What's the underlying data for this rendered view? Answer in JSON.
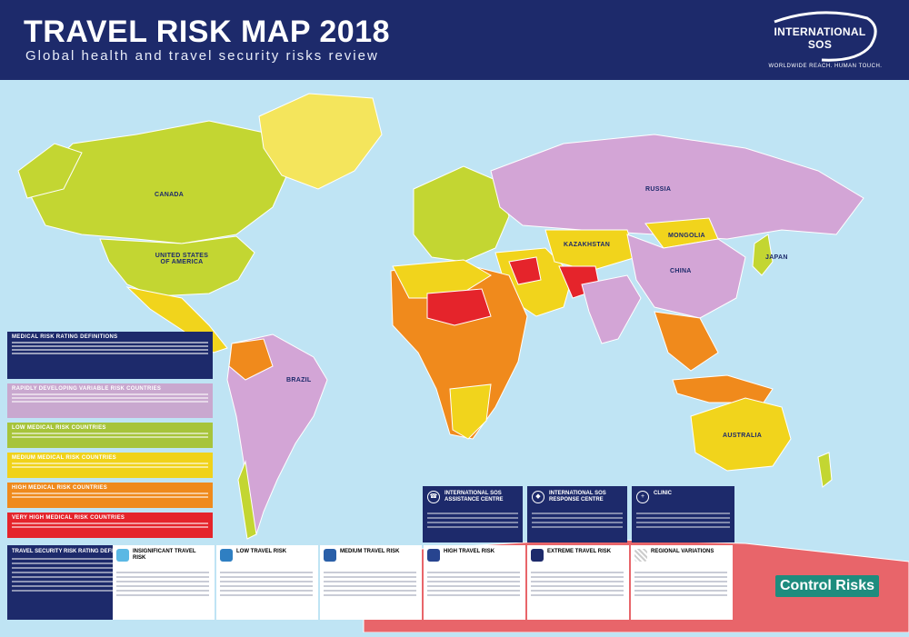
{
  "header": {
    "title": "TRAVEL RISK MAP 2018",
    "subtitle": "Global health and travel security risks review",
    "logo_name": "INTERNATIONAL SOS",
    "logo_tagline": "WORLDWIDE REACH. HUMAN TOUCH.",
    "background_color": "#1d2a6b"
  },
  "map": {
    "ocean_color": "#bfe4f4",
    "country_labels": {
      "canada": "CANADA",
      "usa": "UNITED STATES OF AMERICA",
      "russia": "RUSSIA",
      "china": "CHINA",
      "australia": "AUSTRALIA",
      "brazil": "BRAZIL",
      "mongolia": "MONGOLIA",
      "kazakhstan": "KAZAKHSTAN",
      "japan": "JAPAN"
    }
  },
  "medical_legend": {
    "definitions_title": "MEDICAL RISK RATING DEFINITIONS",
    "levels": [
      {
        "label": "RAPIDLY DEVELOPING VARIABLE RISK COUNTRIES",
        "color": "#c9a8cf"
      },
      {
        "label": "LOW MEDICAL RISK COUNTRIES",
        "color": "#a7c43a"
      },
      {
        "label": "MEDIUM MEDICAL RISK COUNTRIES",
        "color": "#f0d21a"
      },
      {
        "label": "HIGH MEDICAL RISK COUNTRIES",
        "color": "#ef8a1c"
      },
      {
        "label": "VERY HIGH MEDICAL RISK COUNTRIES",
        "color": "#e5242b"
      }
    ]
  },
  "security_legend": {
    "definitions_title": "TRAVEL SECURITY RISK RATING DEFINITIONS",
    "levels": [
      {
        "label": "INSIGNIFICANT TRAVEL RISK",
        "color": "#5bb8e4"
      },
      {
        "label": "LOW TRAVEL RISK",
        "color": "#2f7fc2"
      },
      {
        "label": "MEDIUM TRAVEL RISK",
        "color": "#2a5fa8"
      },
      {
        "label": "HIGH TRAVEL RISK",
        "color": "#27448f"
      },
      {
        "label": "EXTREME TRAVEL RISK",
        "color": "#1d2a6b"
      },
      {
        "label": "REGIONAL VARIATIONS",
        "color": "#cccccc"
      }
    ]
  },
  "services": [
    {
      "label": "INTERNATIONAL SOS ASSISTANCE CENTRE",
      "icon": "phone-icon"
    },
    {
      "label": "INTERNATIONAL SOS RESPONSE CENTRE",
      "icon": "shield-icon"
    },
    {
      "label": "CLINIC",
      "icon": "cross-icon"
    }
  ],
  "partner": {
    "name": "Control Risks",
    "color": "#1e8c7e"
  }
}
